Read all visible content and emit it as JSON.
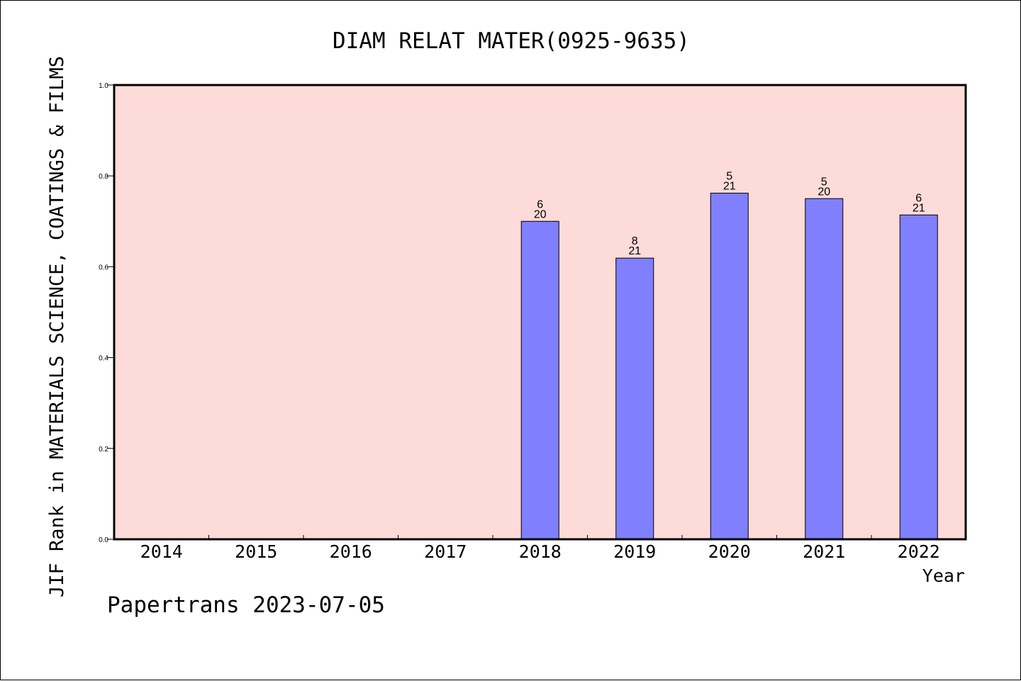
{
  "chart_data": {
    "type": "bar",
    "title": "DIAM RELAT MATER(0925-9635)",
    "xlabel": "Year",
    "ylabel": "JIF Rank in MATERIALS SCIENCE, COATINGS & FILMS",
    "categories": [
      "2014",
      "2015",
      "2016",
      "2017",
      "2018",
      "2019",
      "2020",
      "2021",
      "2022"
    ],
    "values": [
      null,
      null,
      null,
      null,
      0.7,
      0.619,
      0.762,
      0.75,
      0.714
    ],
    "rank_labels": [
      null,
      null,
      null,
      null,
      {
        "rank": "6",
        "total": "20"
      },
      {
        "rank": "8",
        "total": "21"
      },
      {
        "rank": "5",
        "total": "21"
      },
      {
        "rank": "5",
        "total": "20"
      },
      {
        "rank": "6",
        "total": "21"
      }
    ],
    "ylim": [
      0,
      1
    ],
    "yticks": [
      "0.0",
      "0.2",
      "0.4",
      "0.6",
      "0.8",
      "1.0"
    ],
    "ytick_values": [
      0,
      0.2,
      0.4,
      0.6,
      0.8,
      1.0
    ],
    "grid": false,
    "colors": {
      "plot_background": "#fddbd8",
      "bar_fill": "#8080ff",
      "bar_stroke": "#000000"
    }
  },
  "footer": {
    "credit": "Papertrans 2023-07-05"
  }
}
